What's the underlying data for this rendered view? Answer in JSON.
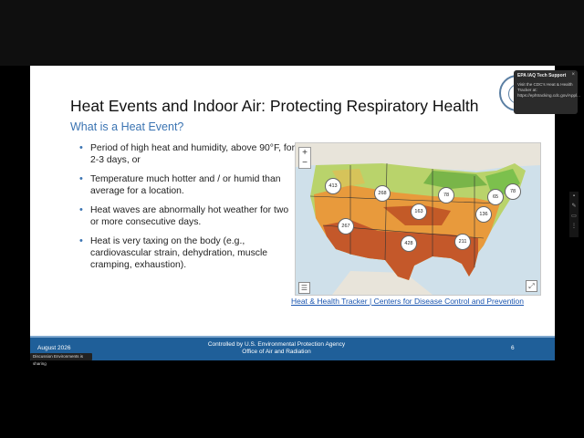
{
  "slide": {
    "title": "Heat Events and Indoor Air: Protecting Respiratory Health",
    "subtitle": "What is a Heat Event?",
    "bullets": [
      "Period of high heat and humidity, above 90°F, for 2-3 days, or",
      "Temperature much hotter and / or humid than average for a location.",
      "Heat waves are abnormally hot weather for two or more consecutive days.",
      "Heat is very taxing on the body (e.g., cardiovascular strain, dehydration, muscle cramping, exhaustion)."
    ],
    "map": {
      "zoom_in": "+",
      "zoom_out": "−",
      "bubbles": [
        {
          "id": "b1",
          "value": "413"
        },
        {
          "id": "b2",
          "value": "268"
        },
        {
          "id": "b3",
          "value": "78"
        },
        {
          "id": "b4",
          "value": "65"
        },
        {
          "id": "b5",
          "value": "78"
        },
        {
          "id": "b6",
          "value": "163"
        },
        {
          "id": "b7",
          "value": "136"
        },
        {
          "id": "b8",
          "value": "267"
        },
        {
          "id": "b9",
          "value": "428"
        },
        {
          "id": "b10",
          "value": "211"
        }
      ]
    },
    "caption": {
      "link1": "Heat & Health Tracker",
      "separator": "|",
      "link2": "Centers for Disease Control and Prevention"
    },
    "footer": {
      "date": "August 2026",
      "center_line1": "Controlled by U.S. Environmental Protection Agency",
      "center_line2": "Office of Air and Radiation",
      "page": "6"
    }
  },
  "toast": {
    "title": "EPA IAQ Tech Support",
    "body": "Visit the CDC's Heat & Health Tracker at: https://ephtracking.cdc.gov/Appl...",
    "close": "×"
  },
  "share_bar": {
    "text": "Discussion Environments is sharing"
  },
  "colors": {
    "accent": "#3b74b2",
    "footer": "#1f5f99",
    "link": "#1a55b0"
  }
}
